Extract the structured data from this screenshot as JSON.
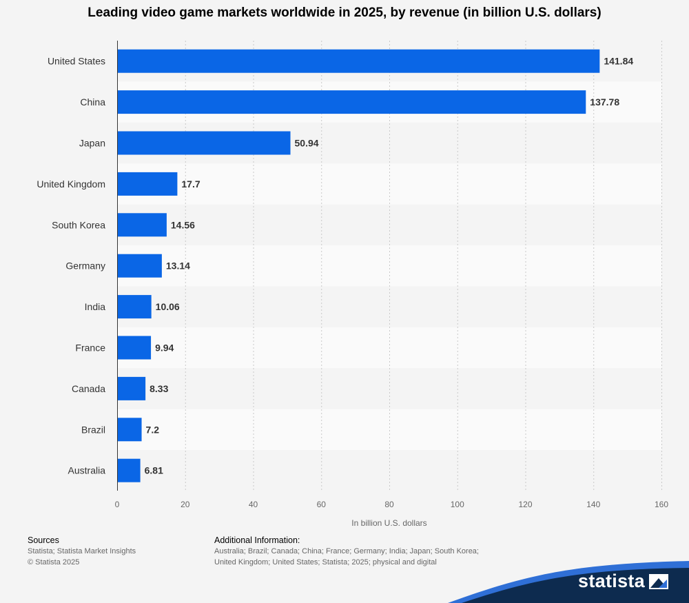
{
  "chart_data": {
    "type": "bar",
    "orientation": "horizontal",
    "title": "Leading video game markets worldwide in 2025, by revenue (in billion U.S. dollars)",
    "categories": [
      "United States",
      "China",
      "Japan",
      "United Kingdom",
      "South Korea",
      "Germany",
      "India",
      "France",
      "Canada",
      "Brazil",
      "Australia"
    ],
    "values": [
      141.84,
      137.78,
      50.94,
      17.7,
      14.56,
      13.14,
      10.06,
      9.94,
      8.33,
      7.2,
      6.81
    ],
    "value_labels": [
      "141.84",
      "137.78",
      "50.94",
      "17.7",
      "14.56",
      "13.14",
      "10.06",
      "9.94",
      "8.33",
      "7.2",
      "6.81"
    ],
    "xlabel": "In billion U.S. dollars",
    "ylabel": "",
    "xlim": [
      0,
      160
    ],
    "xticks": [
      0,
      20,
      40,
      60,
      80,
      100,
      120,
      140,
      160
    ],
    "grid": true,
    "bar_color": "#0a66e6"
  },
  "footer": {
    "sources_heading": "Sources",
    "sources_lines": [
      "Statista; Statista Market Insights",
      "© Statista 2025"
    ],
    "additional_heading": "Additional Information:",
    "additional_text": "Australia; Brazil; Canada; China; France; Germany; India; Japan; South Korea; United Kingdom; United States; Statista; 2025; physical and digital"
  },
  "brand": {
    "name": "statista",
    "icon": "statista-logo-icon"
  },
  "colors": {
    "background": "#f4f4f4",
    "band": "#fafafa",
    "footer_wave": "#0d2b4f",
    "footer_wave_accent": "#2f6fd6"
  }
}
